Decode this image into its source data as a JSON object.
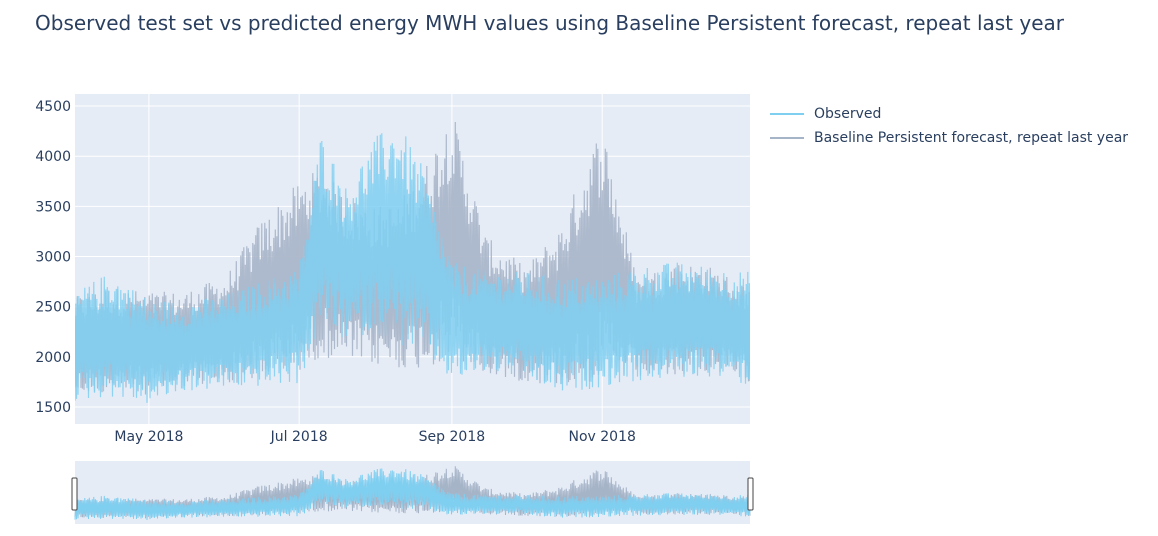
{
  "chart_data": {
    "type": "line",
    "title": "Observed test set vs predicted energy MWH values using Baseline Persistent forecast, repeat last year",
    "xlabel": "",
    "ylabel": "",
    "ylim": [
      1330,
      4620
    ],
    "xlim": [
      "2018-04-01",
      "2018-12-31"
    ],
    "x_ticks": [
      {
        "label": "May 2018",
        "date": "2018-05-01"
      },
      {
        "label": "Jul 2018",
        "date": "2018-07-01"
      },
      {
        "label": "Sep 2018",
        "date": "2018-09-01"
      },
      {
        "label": "Nov 2018",
        "date": "2018-11-01"
      }
    ],
    "y_ticks": [
      1500,
      2000,
      2500,
      3000,
      3500,
      4000,
      4500
    ],
    "grid": true,
    "legend_position": "right",
    "range_slider": true,
    "series": [
      {
        "name": "Observed",
        "color": "#7fcff1",
        "x": [
          "2018-04-01",
          "2018-04-15",
          "2018-05-01",
          "2018-05-15",
          "2018-06-01",
          "2018-06-15",
          "2018-07-01",
          "2018-07-10",
          "2018-07-20",
          "2018-08-01",
          "2018-08-10",
          "2018-08-20",
          "2018-09-01",
          "2018-09-15",
          "2018-10-01",
          "2018-10-15",
          "2018-11-01",
          "2018-11-15",
          "2018-12-01",
          "2018-12-15",
          "2018-12-31"
        ],
        "min": [
          1550,
          1600,
          1520,
          1650,
          1680,
          1700,
          1730,
          2300,
          2150,
          2250,
          2100,
          2050,
          1750,
          1850,
          1780,
          1620,
          1700,
          1750,
          1780,
          1800,
          1700
        ],
        "max": [
          2650,
          2850,
          2580,
          2550,
          2620,
          2750,
          2900,
          4250,
          3700,
          4200,
          4350,
          3900,
          2950,
          2850,
          2850,
          2800,
          2800,
          2900,
          2950,
          2900,
          2850
        ]
      },
      {
        "name": "Baseline Persistent forecast, repeat last year",
        "color": "#a6b4c8",
        "x": [
          "2018-04-01",
          "2018-04-15",
          "2018-05-01",
          "2018-05-15",
          "2018-06-01",
          "2018-06-15",
          "2018-07-01",
          "2018-07-10",
          "2018-07-20",
          "2018-08-01",
          "2018-08-10",
          "2018-08-20",
          "2018-09-01",
          "2018-09-15",
          "2018-10-01",
          "2018-10-15",
          "2018-11-01",
          "2018-11-15",
          "2018-12-01",
          "2018-12-15",
          "2018-12-31"
        ],
        "min": [
          1600,
          1650,
          1620,
          1700,
          1720,
          1760,
          1850,
          2000,
          1950,
          1900,
          1880,
          1870,
          1950,
          1800,
          1750,
          1700,
          1750,
          1780,
          1800,
          1850,
          1750
        ],
        "max": [
          2600,
          2700,
          2650,
          2650,
          2800,
          3350,
          3750,
          3900,
          3600,
          3500,
          3550,
          3850,
          4480,
          3200,
          2900,
          3300,
          4350,
          2800,
          2950,
          2900,
          2700
        ]
      }
    ]
  }
}
